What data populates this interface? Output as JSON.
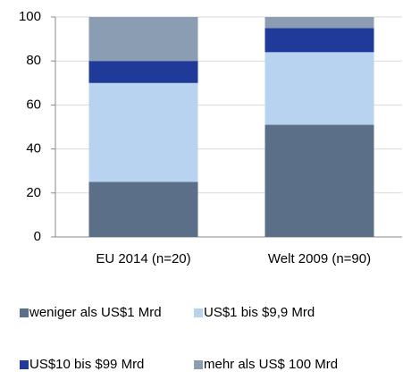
{
  "chart_data": {
    "type": "stacked_bar",
    "categories": [
      "EU 2014 (n=20)",
      "Welt 2009 (n=90)"
    ],
    "series": [
      {
        "name": "weniger als US$1 Mrd",
        "color": "#5b7088",
        "values": [
          25,
          51
        ]
      },
      {
        "name": "US$1 bis $9,9 Mrd",
        "color": "#b8d3f0",
        "values": [
          45,
          33
        ]
      },
      {
        "name": "US$10 bis $99 Mrd",
        "color": "#1f3a99",
        "values": [
          10,
          11
        ]
      },
      {
        "name": "mehr als US$ 100 Mrd",
        "color": "#8a9db2",
        "values": [
          20,
          5
        ]
      }
    ],
    "ylim": [
      0,
      100
    ],
    "yticks": [
      0,
      20,
      40,
      60,
      80,
      100
    ],
    "grid": true,
    "legend": "bottom"
  }
}
